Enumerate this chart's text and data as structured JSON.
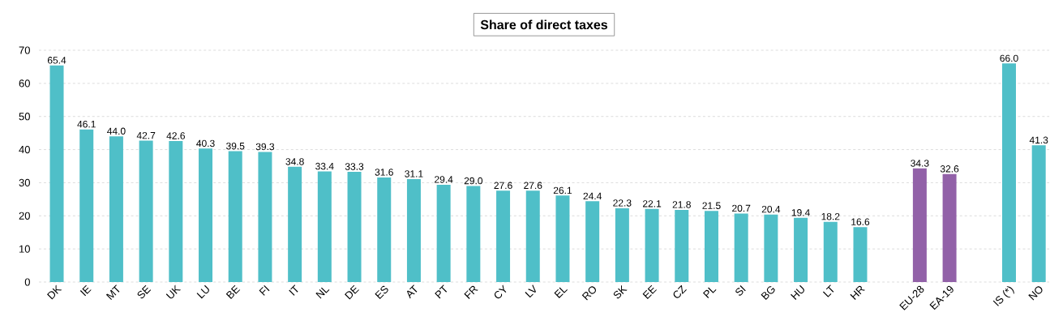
{
  "chart_data": {
    "type": "bar",
    "title": "Share of direct taxes",
    "categories": [
      "DK",
      "IE",
      "MT",
      "SE",
      "UK",
      "LU",
      "BE",
      "FI",
      "IT",
      "NL",
      "DE",
      "ES",
      "AT",
      "PT",
      "FR",
      "CY",
      "LV",
      "EL",
      "RO",
      "SK",
      "EE",
      "CZ",
      "PL",
      "SI",
      "BG",
      "HU",
      "LT",
      "HR",
      null,
      "EU-28",
      "EA-19",
      null,
      "IS (*)",
      "NO"
    ],
    "values": [
      65.4,
      46.1,
      44.0,
      42.7,
      42.6,
      40.3,
      39.5,
      39.3,
      34.8,
      33.4,
      33.3,
      31.6,
      31.1,
      29.4,
      29.0,
      27.6,
      27.6,
      26.1,
      24.4,
      22.3,
      22.1,
      21.8,
      21.5,
      20.7,
      20.4,
      19.4,
      18.2,
      16.6,
      null,
      34.3,
      32.6,
      null,
      66.0,
      41.3
    ],
    "colors": [
      "#4fbfc8",
      "#4fbfc8",
      "#4fbfc8",
      "#4fbfc8",
      "#4fbfc8",
      "#4fbfc8",
      "#4fbfc8",
      "#4fbfc8",
      "#4fbfc8",
      "#4fbfc8",
      "#4fbfc8",
      "#4fbfc8",
      "#4fbfc8",
      "#4fbfc8",
      "#4fbfc8",
      "#4fbfc8",
      "#4fbfc8",
      "#4fbfc8",
      "#4fbfc8",
      "#4fbfc8",
      "#4fbfc8",
      "#4fbfc8",
      "#4fbfc8",
      "#4fbfc8",
      "#4fbfc8",
      "#4fbfc8",
      "#4fbfc8",
      "#4fbfc8",
      "#4fbfc8",
      "#9261a8",
      "#9261a8",
      "#4fbfc8",
      "#4fbfc8",
      "#4fbfc8"
    ],
    "value_labels": [
      "65.4",
      "46.1",
      "44.0",
      "42.7",
      "42.6",
      "40.3",
      "39.5",
      "39.3",
      "34.8",
      "33.4",
      "33.3",
      "31.6",
      "31.1",
      "29.4",
      "29.0",
      "27.6",
      "27.6",
      "26.1",
      "24.4",
      "22.3",
      "22.1",
      "21.8",
      "21.5",
      "20.7",
      "20.4",
      "19.4",
      "18.2",
      "16.6",
      null,
      "34.3",
      "32.6",
      null,
      "66.0",
      "41.3"
    ],
    "grid": "y",
    "ylim": [
      0,
      70
    ],
    "yticks": [
      0,
      10,
      20,
      30,
      40,
      50,
      60,
      70
    ]
  }
}
